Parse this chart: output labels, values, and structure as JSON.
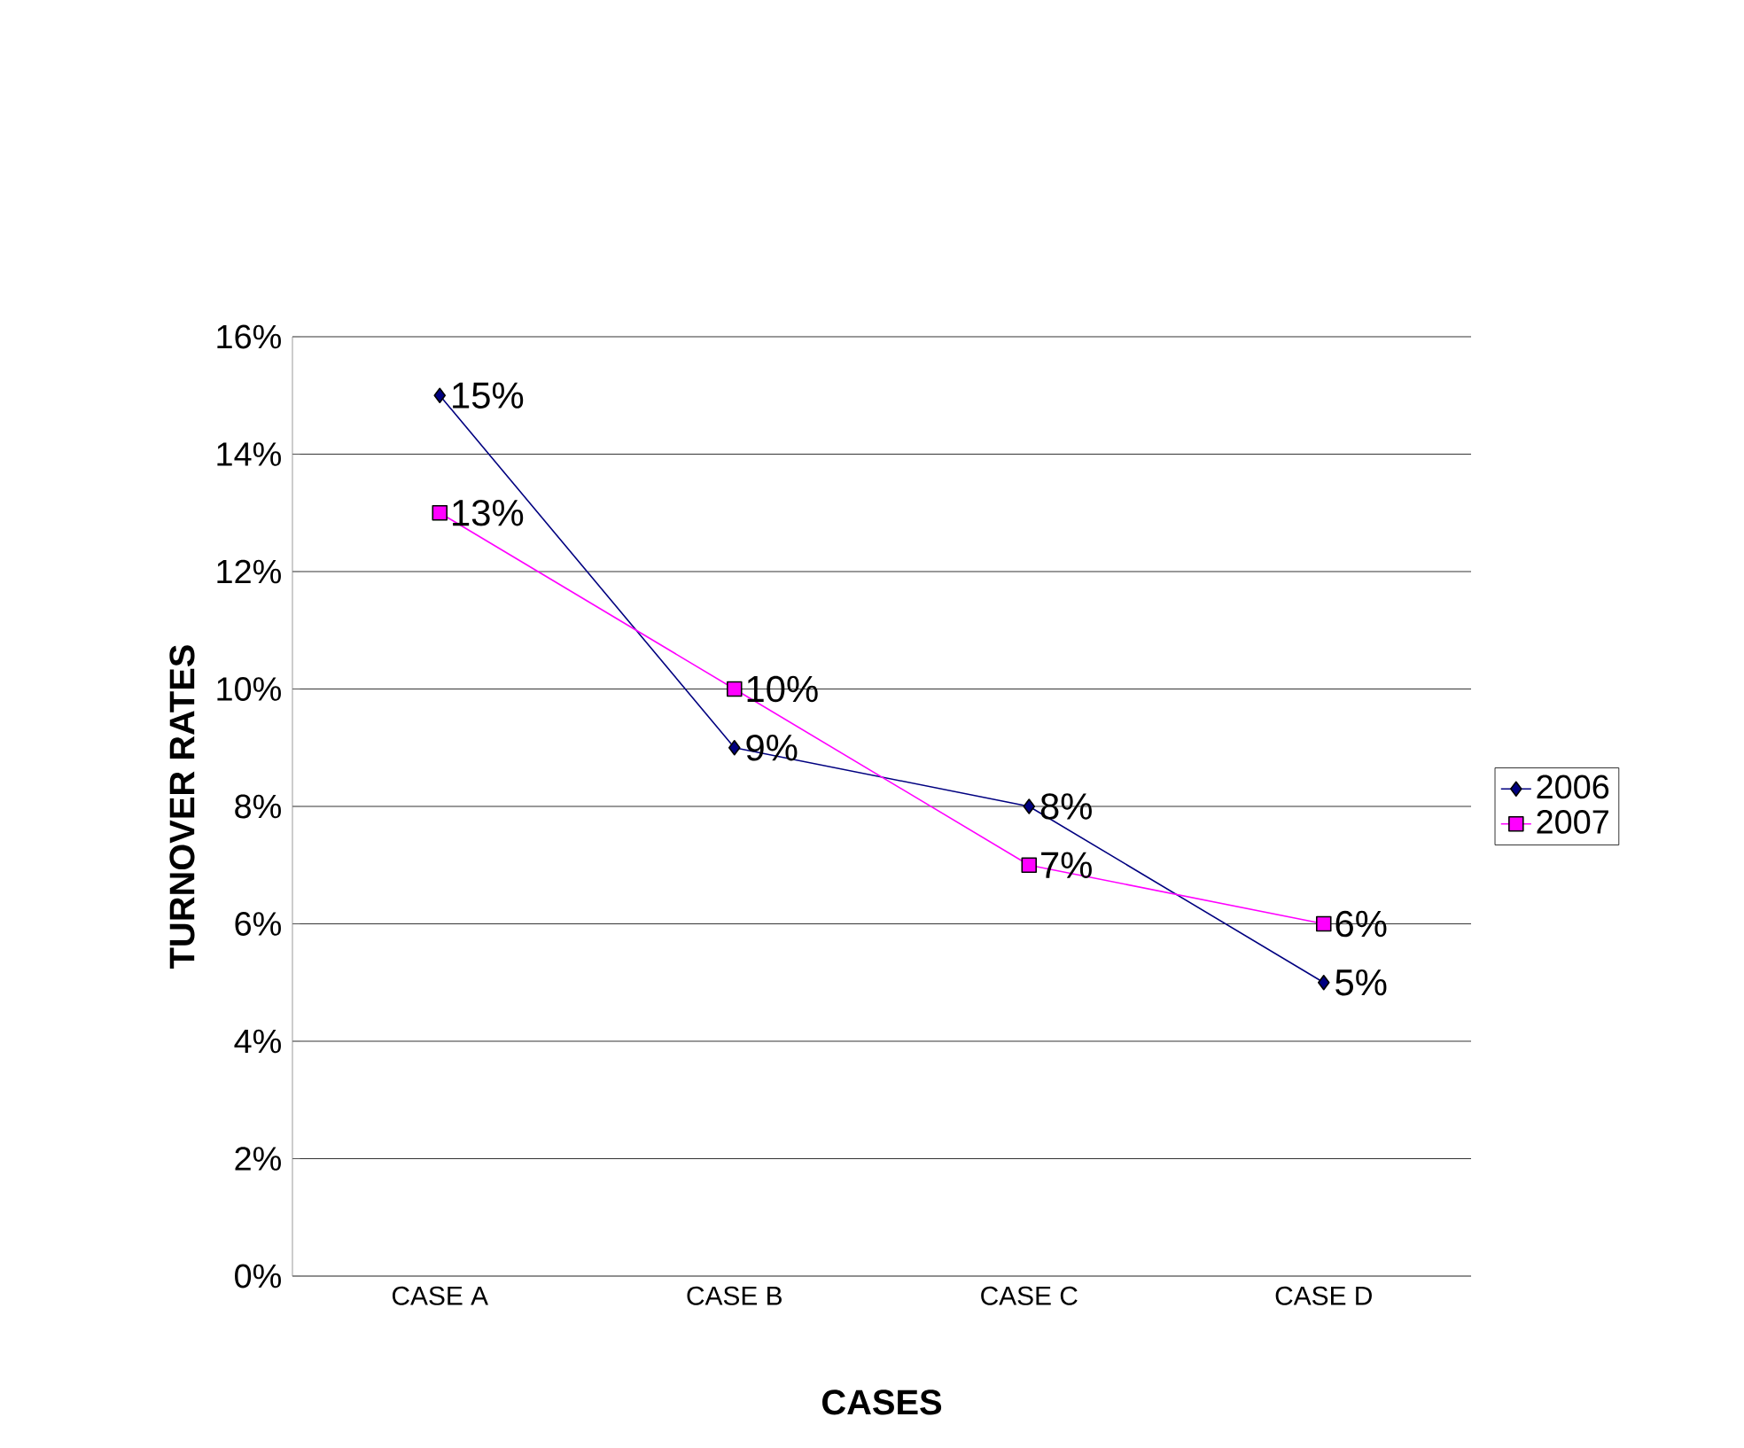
{
  "chart_data": {
    "type": "line",
    "xlabel": "CASES",
    "ylabel": "TURNOVER RATES",
    "categories": [
      "CASE A",
      "CASE B",
      "CASE C",
      "CASE D"
    ],
    "series": [
      {
        "name": "2006",
        "color": "#000080",
        "marker": "diamond",
        "values": [
          15,
          9,
          8,
          5
        ],
        "value_labels": [
          "15%",
          "9%",
          "8%",
          "5%"
        ]
      },
      {
        "name": "2007",
        "color": "#ff00ff",
        "marker": "square",
        "values": [
          13,
          10,
          7,
          6
        ],
        "value_labels": [
          "13%",
          "10%",
          "7%",
          "6%"
        ]
      }
    ],
    "ylim": [
      0,
      16
    ],
    "yticks": [
      {
        "value": 0,
        "label": "0%"
      },
      {
        "value": 2,
        "label": "2%"
      },
      {
        "value": 4,
        "label": "4%"
      },
      {
        "value": 6,
        "label": "6%"
      },
      {
        "value": 8,
        "label": "8%"
      },
      {
        "value": 10,
        "label": "10%"
      },
      {
        "value": 12,
        "label": "12%"
      },
      {
        "value": 14,
        "label": "14%"
      },
      {
        "value": 16,
        "label": "16%"
      }
    ],
    "grid": "y",
    "legend": "right",
    "line_style": "solid"
  }
}
